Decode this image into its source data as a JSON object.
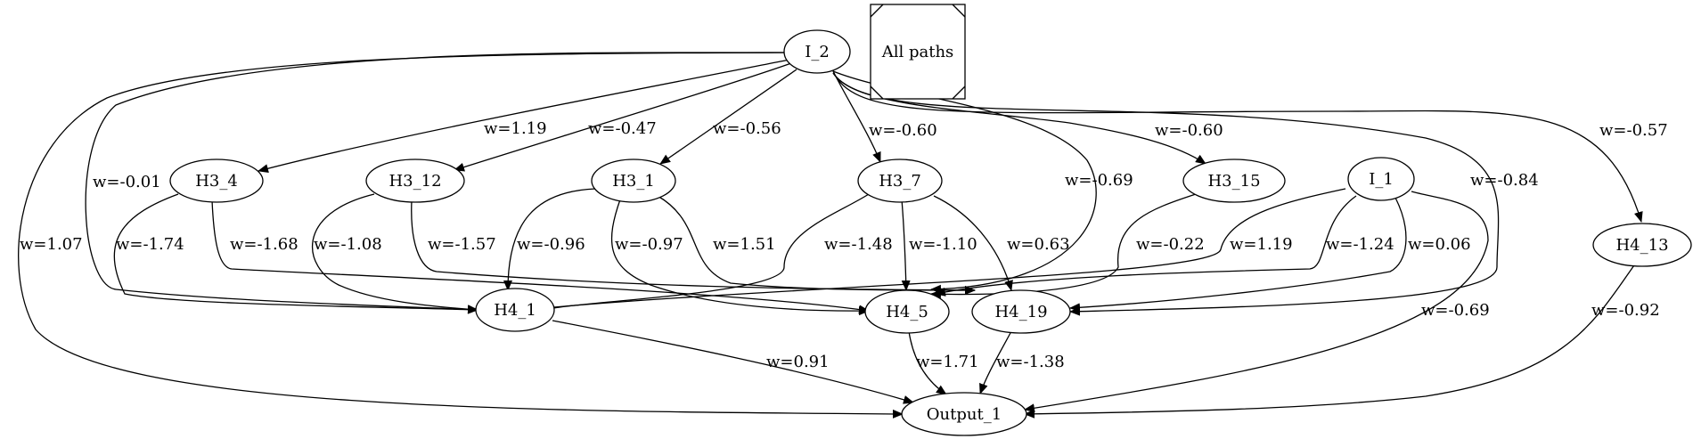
{
  "legend": {
    "label": "All paths"
  },
  "nodes": {
    "I_2": "I_2",
    "I_1": "I_1",
    "H3_4": "H3_4",
    "H3_12": "H3_12",
    "H3_1": "H3_1",
    "H3_7": "H3_7",
    "H3_15": "H3_15",
    "H4_13": "H4_13",
    "H4_1": "H4_1",
    "H4_5": "H4_5",
    "H4_19": "H4_19",
    "Output_1": "Output_1"
  },
  "edges": [
    {
      "from": "I_2",
      "to": "H3_4",
      "label": "w=1.19"
    },
    {
      "from": "I_2",
      "to": "H3_12",
      "label": "w=-0.47"
    },
    {
      "from": "I_2",
      "to": "H3_1",
      "label": "w=-0.56"
    },
    {
      "from": "I_2",
      "to": "H3_7",
      "label": "w=-0.60"
    },
    {
      "from": "I_2",
      "to": "H3_15",
      "label": "w=-0.60"
    },
    {
      "from": "I_2",
      "to": "H4_13",
      "label": "w=-0.57"
    },
    {
      "from": "I_2",
      "to": "H4_1",
      "label": "w=-0.01"
    },
    {
      "from": "I_2",
      "to": "Output_1",
      "label": "w=1.07"
    },
    {
      "from": "I_2",
      "to": "H4_5",
      "label": "w=-0.69"
    },
    {
      "from": "I_2",
      "to": "H4_19",
      "label": "w=-0.84"
    },
    {
      "from": "H3_4",
      "to": "H4_1",
      "label": "w=-1.74"
    },
    {
      "from": "H3_4",
      "to": "H4_5",
      "label": "w=-1.68"
    },
    {
      "from": "H3_12",
      "to": "H4_1",
      "label": "w=-1.08"
    },
    {
      "from": "H3_12",
      "to": "H4_19",
      "label": "w=-1.57"
    },
    {
      "from": "H3_1",
      "to": "H4_1",
      "label": "w=-0.96"
    },
    {
      "from": "H3_1",
      "to": "H4_5",
      "label": "w=-0.97"
    },
    {
      "from": "H3_1",
      "to": "H4_19",
      "label": "w=1.51"
    },
    {
      "from": "H3_7",
      "to": "H4_1",
      "label": "w=-1.48"
    },
    {
      "from": "H3_7",
      "to": "H4_5",
      "label": "w=-1.10"
    },
    {
      "from": "H3_7",
      "to": "H4_19",
      "label": "w=0.63"
    },
    {
      "from": "H3_15",
      "to": "H4_5",
      "label": "w=-0.22"
    },
    {
      "from": "I_1",
      "to": "H4_1",
      "label": "w=1.19"
    },
    {
      "from": "I_1",
      "to": "H4_5",
      "label": "w=-1.24"
    },
    {
      "from": "I_1",
      "to": "H4_19",
      "label": "w=0.06"
    },
    {
      "from": "I_1",
      "to": "Output_1",
      "label": "w=-0.69"
    },
    {
      "from": "H4_13",
      "to": "Output_1",
      "label": "w=-0.92"
    },
    {
      "from": "H4_1",
      "to": "Output_1",
      "label": "w=0.91"
    },
    {
      "from": "H4_5",
      "to": "Output_1",
      "label": "w=1.71"
    },
    {
      "from": "H4_19",
      "to": "Output_1",
      "label": "w=-1.38"
    }
  ]
}
